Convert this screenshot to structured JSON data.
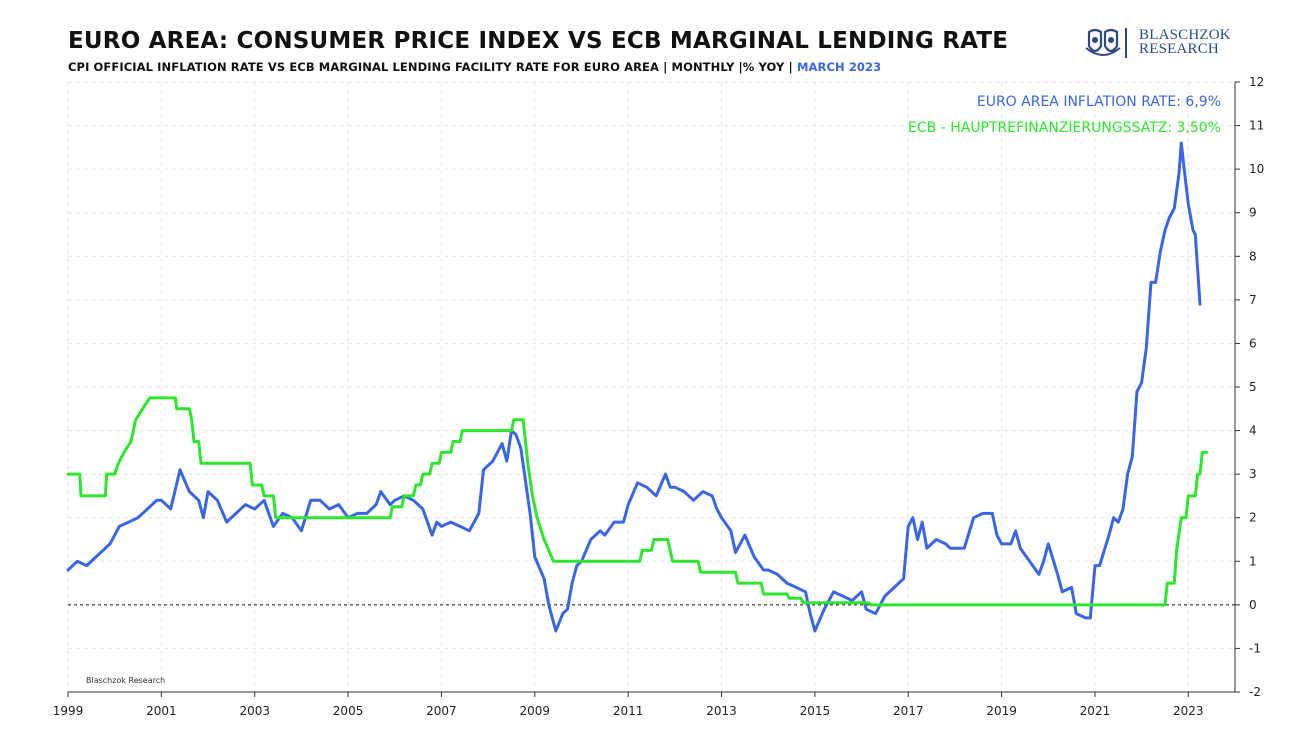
{
  "header": {
    "title": "EURO AREA: CONSUMER PRICE INDEX VS ECB MARGINAL LENDING RATE",
    "subtitle_main": "CPI OFFICIAL INFLATION RATE VS ECB MARGINAL LENDING FACILITY RATE FOR EURO AREA | MONTHLY |% YOY |",
    "subtitle_date": "MARCH 2023"
  },
  "logo": {
    "line1": "BLASCHZOK",
    "line2": "RESEARCH",
    "icon": "twin-shield-crest-icon"
  },
  "colors": {
    "inflation": "#3a66e6",
    "ecb": "#2ee62e",
    "zero_line": "#111111",
    "grid": "#e6e6e6"
  },
  "chart_data": {
    "type": "line",
    "title": "EURO AREA: CONSUMER PRICE INDEX VS ECB MARGINAL LENDING RATE",
    "xlim": [
      1999.0,
      2024.0
    ],
    "ylim": [
      -2,
      12
    ],
    "x_ticks": [
      "1999",
      "2001",
      "2003",
      "2005",
      "2007",
      "2009",
      "2011",
      "2013",
      "2015",
      "2017",
      "2019",
      "2021",
      "2023"
    ],
    "y_ticks": [
      "12",
      "11",
      "10",
      "9",
      "8",
      "7",
      "6",
      "5",
      "4",
      "3",
      "2",
      "1",
      "0",
      "-1",
      "-2"
    ],
    "y_axis_position": "right",
    "grid": true,
    "zero_reference_line": "dashed",
    "annotations": {
      "inflation": "EURO AREA INFLATION RATE: 6,9%",
      "ecb": "ECB - HAUPTREFINANZIERUNGSSATZ: 3,50%"
    },
    "watermark": "Blaschzok Research",
    "series": [
      {
        "name": "EURO AREA INFLATION RATE",
        "color": "#3a66e6",
        "points": [
          [
            1999.0,
            0.8
          ],
          [
            1999.2,
            1.0
          ],
          [
            1999.4,
            0.9
          ],
          [
            1999.6,
            1.1
          ],
          [
            1999.9,
            1.4
          ],
          [
            2000.1,
            1.8
          ],
          [
            2000.3,
            1.9
          ],
          [
            2000.5,
            2.0
          ],
          [
            2000.7,
            2.2
          ],
          [
            2000.9,
            2.4
          ],
          [
            2001.0,
            2.4
          ],
          [
            2001.2,
            2.2
          ],
          [
            2001.4,
            3.1
          ],
          [
            2001.6,
            2.6
          ],
          [
            2001.8,
            2.4
          ],
          [
            2001.9,
            2.0
          ],
          [
            2002.0,
            2.6
          ],
          [
            2002.2,
            2.4
          ],
          [
            2002.4,
            1.9
          ],
          [
            2002.6,
            2.1
          ],
          [
            2002.8,
            2.3
          ],
          [
            2003.0,
            2.2
          ],
          [
            2003.2,
            2.4
          ],
          [
            2003.4,
            1.8
          ],
          [
            2003.6,
            2.1
          ],
          [
            2003.8,
            2.0
          ],
          [
            2004.0,
            1.7
          ],
          [
            2004.2,
            2.4
          ],
          [
            2004.4,
            2.4
          ],
          [
            2004.6,
            2.2
          ],
          [
            2004.8,
            2.3
          ],
          [
            2005.0,
            2.0
          ],
          [
            2005.2,
            2.1
          ],
          [
            2005.4,
            2.1
          ],
          [
            2005.6,
            2.3
          ],
          [
            2005.7,
            2.6
          ],
          [
            2005.9,
            2.3
          ],
          [
            2006.0,
            2.4
          ],
          [
            2006.2,
            2.5
          ],
          [
            2006.4,
            2.4
          ],
          [
            2006.6,
            2.2
          ],
          [
            2006.8,
            1.6
          ],
          [
            2006.9,
            1.9
          ],
          [
            2007.0,
            1.8
          ],
          [
            2007.2,
            1.9
          ],
          [
            2007.4,
            1.8
          ],
          [
            2007.6,
            1.7
          ],
          [
            2007.8,
            2.1
          ],
          [
            2007.9,
            3.1
          ],
          [
            2008.1,
            3.3
          ],
          [
            2008.3,
            3.7
          ],
          [
            2008.4,
            3.3
          ],
          [
            2008.5,
            4.0
          ],
          [
            2008.6,
            3.9
          ],
          [
            2008.7,
            3.6
          ],
          [
            2008.9,
            2.1
          ],
          [
            2009.0,
            1.1
          ],
          [
            2009.2,
            0.6
          ],
          [
            2009.3,
            0.0
          ],
          [
            2009.45,
            -0.6
          ],
          [
            2009.6,
            -0.2
          ],
          [
            2009.7,
            -0.1
          ],
          [
            2009.8,
            0.5
          ],
          [
            2009.9,
            0.9
          ],
          [
            2010.0,
            1.0
          ],
          [
            2010.2,
            1.5
          ],
          [
            2010.4,
            1.7
          ],
          [
            2010.5,
            1.6
          ],
          [
            2010.7,
            1.9
          ],
          [
            2010.9,
            1.9
          ],
          [
            2011.0,
            2.3
          ],
          [
            2011.2,
            2.8
          ],
          [
            2011.4,
            2.7
          ],
          [
            2011.6,
            2.5
          ],
          [
            2011.8,
            3.0
          ],
          [
            2011.9,
            2.7
          ],
          [
            2012.0,
            2.7
          ],
          [
            2012.2,
            2.6
          ],
          [
            2012.4,
            2.4
          ],
          [
            2012.6,
            2.6
          ],
          [
            2012.8,
            2.5
          ],
          [
            2012.9,
            2.2
          ],
          [
            2013.0,
            2.0
          ],
          [
            2013.2,
            1.7
          ],
          [
            2013.3,
            1.2
          ],
          [
            2013.5,
            1.6
          ],
          [
            2013.7,
            1.1
          ],
          [
            2013.9,
            0.8
          ],
          [
            2014.0,
            0.8
          ],
          [
            2014.2,
            0.7
          ],
          [
            2014.4,
            0.5
          ],
          [
            2014.6,
            0.4
          ],
          [
            2014.8,
            0.3
          ],
          [
            2014.9,
            -0.2
          ],
          [
            2015.0,
            -0.6
          ],
          [
            2015.2,
            -0.1
          ],
          [
            2015.4,
            0.3
          ],
          [
            2015.6,
            0.2
          ],
          [
            2015.8,
            0.1
          ],
          [
            2015.9,
            0.2
          ],
          [
            2016.0,
            0.3
          ],
          [
            2016.1,
            -0.1
          ],
          [
            2016.3,
            -0.2
          ],
          [
            2016.5,
            0.2
          ],
          [
            2016.7,
            0.4
          ],
          [
            2016.9,
            0.6
          ],
          [
            2017.0,
            1.8
          ],
          [
            2017.1,
            2.0
          ],
          [
            2017.2,
            1.5
          ],
          [
            2017.3,
            1.9
          ],
          [
            2017.4,
            1.3
          ],
          [
            2017.6,
            1.5
          ],
          [
            2017.8,
            1.4
          ],
          [
            2017.9,
            1.3
          ],
          [
            2018.0,
            1.3
          ],
          [
            2018.2,
            1.3
          ],
          [
            2018.4,
            2.0
          ],
          [
            2018.6,
            2.1
          ],
          [
            2018.8,
            2.1
          ],
          [
            2018.9,
            1.6
          ],
          [
            2019.0,
            1.4
          ],
          [
            2019.2,
            1.4
          ],
          [
            2019.3,
            1.7
          ],
          [
            2019.4,
            1.3
          ],
          [
            2019.6,
            1.0
          ],
          [
            2019.8,
            0.7
          ],
          [
            2019.9,
            1.0
          ],
          [
            2020.0,
            1.4
          ],
          [
            2020.2,
            0.7
          ],
          [
            2020.3,
            0.3
          ],
          [
            2020.5,
            0.4
          ],
          [
            2020.6,
            -0.2
          ],
          [
            2020.8,
            -0.3
          ],
          [
            2020.9,
            -0.3
          ],
          [
            2021.0,
            0.9
          ],
          [
            2021.1,
            0.9
          ],
          [
            2021.3,
            1.6
          ],
          [
            2021.4,
            2.0
          ],
          [
            2021.5,
            1.9
          ],
          [
            2021.6,
            2.2
          ],
          [
            2021.7,
            3.0
          ],
          [
            2021.8,
            3.4
          ],
          [
            2021.9,
            4.9
          ],
          [
            2022.0,
            5.1
          ],
          [
            2022.1,
            5.9
          ],
          [
            2022.2,
            7.4
          ],
          [
            2022.3,
            7.4
          ],
          [
            2022.4,
            8.1
          ],
          [
            2022.5,
            8.6
          ],
          [
            2022.6,
            8.9
          ],
          [
            2022.7,
            9.1
          ],
          [
            2022.8,
            9.9
          ],
          [
            2022.85,
            10.6
          ],
          [
            2022.9,
            10.1
          ],
          [
            2023.0,
            9.2
          ],
          [
            2023.1,
            8.6
          ],
          [
            2023.15,
            8.5
          ],
          [
            2023.25,
            6.9
          ]
        ]
      },
      {
        "name": "ECB - HAUPTREFINANZIERUNGSSATZ",
        "color": "#2ee62e",
        "points": [
          [
            1999.0,
            3.0
          ],
          [
            1999.25,
            3.0
          ],
          [
            1999.28,
            2.5
          ],
          [
            1999.8,
            2.5
          ],
          [
            1999.83,
            3.0
          ],
          [
            2000.0,
            3.0
          ],
          [
            2000.08,
            3.25
          ],
          [
            2000.2,
            3.5
          ],
          [
            2000.35,
            3.75
          ],
          [
            2000.45,
            4.25
          ],
          [
            2000.6,
            4.5
          ],
          [
            2000.75,
            4.75
          ],
          [
            2001.3,
            4.75
          ],
          [
            2001.33,
            4.5
          ],
          [
            2001.6,
            4.5
          ],
          [
            2001.65,
            4.25
          ],
          [
            2001.7,
            3.75
          ],
          [
            2001.8,
            3.75
          ],
          [
            2001.85,
            3.25
          ],
          [
            2002.9,
            3.25
          ],
          [
            2002.95,
            2.75
          ],
          [
            2003.15,
            2.75
          ],
          [
            2003.2,
            2.5
          ],
          [
            2003.4,
            2.5
          ],
          [
            2003.45,
            2.0
          ],
          [
            2005.9,
            2.0
          ],
          [
            2005.95,
            2.25
          ],
          [
            2006.15,
            2.25
          ],
          [
            2006.2,
            2.5
          ],
          [
            2006.4,
            2.5
          ],
          [
            2006.45,
            2.75
          ],
          [
            2006.55,
            2.75
          ],
          [
            2006.6,
            3.0
          ],
          [
            2006.75,
            3.0
          ],
          [
            2006.8,
            3.25
          ],
          [
            2006.95,
            3.25
          ],
          [
            2007.0,
            3.5
          ],
          [
            2007.2,
            3.5
          ],
          [
            2007.25,
            3.75
          ],
          [
            2007.4,
            3.75
          ],
          [
            2007.45,
            4.0
          ],
          [
            2008.5,
            4.0
          ],
          [
            2008.55,
            4.25
          ],
          [
            2008.75,
            4.25
          ],
          [
            2008.8,
            3.75
          ],
          [
            2008.85,
            3.25
          ],
          [
            2008.95,
            2.5
          ],
          [
            2009.05,
            2.0
          ],
          [
            2009.2,
            1.5
          ],
          [
            2009.3,
            1.25
          ],
          [
            2009.4,
            1.0
          ],
          [
            2011.25,
            1.0
          ],
          [
            2011.3,
            1.25
          ],
          [
            2011.5,
            1.25
          ],
          [
            2011.55,
            1.5
          ],
          [
            2011.85,
            1.5
          ],
          [
            2011.9,
            1.25
          ],
          [
            2011.95,
            1.0
          ],
          [
            2012.5,
            1.0
          ],
          [
            2012.55,
            0.75
          ],
          [
            2013.3,
            0.75
          ],
          [
            2013.35,
            0.5
          ],
          [
            2013.85,
            0.5
          ],
          [
            2013.9,
            0.25
          ],
          [
            2014.4,
            0.25
          ],
          [
            2014.45,
            0.15
          ],
          [
            2014.7,
            0.15
          ],
          [
            2014.75,
            0.05
          ],
          [
            2016.15,
            0.05
          ],
          [
            2016.2,
            0.0
          ],
          [
            2022.5,
            0.0
          ],
          [
            2022.55,
            0.5
          ],
          [
            2022.7,
            0.5
          ],
          [
            2022.75,
            1.25
          ],
          [
            2022.85,
            2.0
          ],
          [
            2022.95,
            2.0
          ],
          [
            2023.0,
            2.5
          ],
          [
            2023.15,
            2.5
          ],
          [
            2023.2,
            3.0
          ],
          [
            2023.25,
            3.0
          ],
          [
            2023.3,
            3.5
          ],
          [
            2023.4,
            3.5
          ]
        ]
      }
    ]
  }
}
